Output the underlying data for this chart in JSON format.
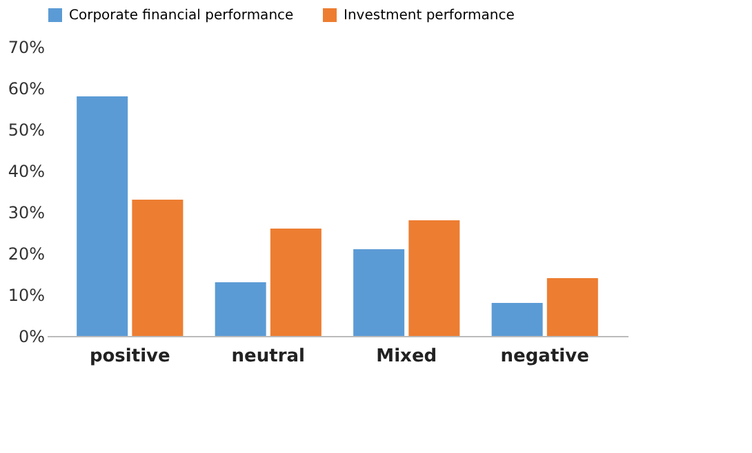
{
  "chart_data": {
    "type": "bar",
    "categories": [
      "positive",
      "neutral",
      "Mixed",
      "negative"
    ],
    "series": [
      {
        "name": "Corporate financial performance",
        "color": "#5b9bd5",
        "values": [
          58,
          13,
          21,
          8
        ]
      },
      {
        "name": "Investment performance",
        "color": "#ed7d31",
        "values": [
          33,
          26,
          28,
          14
        ]
      }
    ],
    "ylim": [
      0,
      70
    ],
    "yticks": [
      {
        "value": 0,
        "label": "0%"
      },
      {
        "value": 10,
        "label": "10%"
      },
      {
        "value": 20,
        "label": "20%"
      },
      {
        "value": 30,
        "label": "30%"
      },
      {
        "value": 40,
        "label": "40%"
      },
      {
        "value": 50,
        "label": "50%"
      },
      {
        "value": 60,
        "label": "60%"
      },
      {
        "value": 70,
        "label": "70%"
      }
    ],
    "grid": false,
    "legend": "top"
  }
}
